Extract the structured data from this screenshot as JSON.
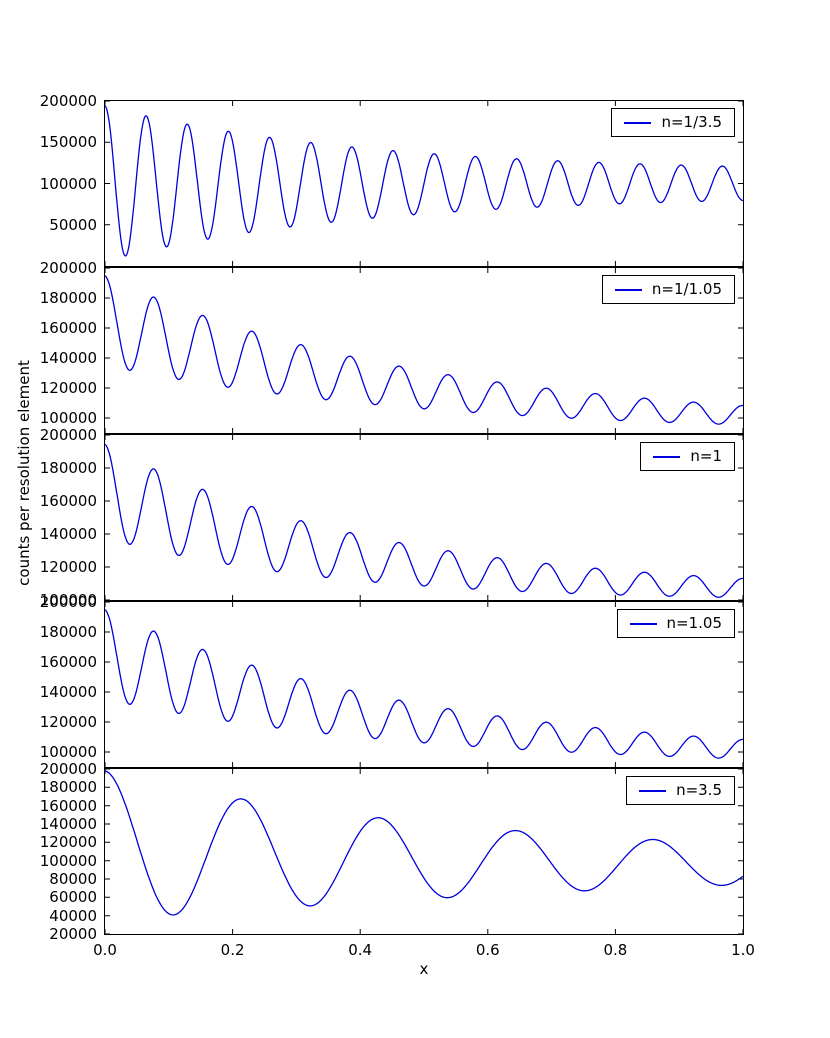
{
  "figure": {
    "background": "#ffffff",
    "axis_color": "#000000",
    "line_color": "#0000dd"
  },
  "chart_data": {
    "type": "line",
    "title": "",
    "xlabel": "x",
    "ylabel": "counts per resolution element",
    "x_range": [
      0.0,
      1.0
    ],
    "x_ticks": [
      0.0,
      0.2,
      0.4,
      0.6,
      0.8,
      1.0
    ],
    "grid": false,
    "legend_position": "upper right",
    "series_color": "#0000dd",
    "panels": [
      {
        "legend": "n=1/3.5",
        "ylim": [
          0,
          200000
        ],
        "yticks": [
          50000,
          100000,
          150000,
          200000
        ],
        "y_at_x0": 195000,
        "summary": "fast fringes, ~15.5 cycles over x=0..1, oscillating about constant mean ~100000; envelope decays from about +/-95000 at x=0 to +/-20000 at x=1",
        "model": {
          "base_end": 100000,
          "base_amp": 0,
          "base_decay": 0,
          "amp0": 80000,
          "amp_decay": 2.5,
          "amp_floor": 14000,
          "freq": 15.5,
          "phase": 0
        }
      },
      {
        "legend": "n=1/1.05",
        "ylim": [
          90000,
          200000
        ],
        "yticks": [
          100000,
          120000,
          140000,
          160000,
          180000,
          200000
        ],
        "y_at_x0": 193000,
        "summary": "~13 cycles; mean decays from ~165000 to ~98000; fringe amplitude decays from ~30000 to ~6000",
        "model": {
          "base_end": 92000,
          "base_amp": 73000,
          "base_decay": 2.0,
          "amp0": 27000,
          "amp_decay": 2.0,
          "amp_floor": 2800,
          "freq": 13,
          "phase": 0
        }
      },
      {
        "legend": "n=1",
        "ylim": [
          100000,
          200000
        ],
        "yticks": [
          100000,
          120000,
          140000,
          160000,
          180000,
          200000
        ],
        "y_at_x0": 193000,
        "summary": "~13 cycles; mean decays from ~166000 to ~107000; fringe amplitude decays from ~29000 to ~6000",
        "model": {
          "base_end": 102000,
          "base_amp": 64000,
          "base_decay": 2.5,
          "amp0": 26000,
          "amp_decay": 2.0,
          "amp_floor": 2300,
          "freq": 13,
          "phase": 0
        }
      },
      {
        "legend": "n=1.05",
        "ylim": [
          90000,
          200000
        ],
        "yticks": [
          100000,
          120000,
          140000,
          160000,
          180000,
          200000
        ],
        "y_at_x0": 193000,
        "summary": "~13 cycles; mean decays from ~165000 to ~97000; fringe amplitude decays from ~30000 to ~6000",
        "model": {
          "base_end": 92000,
          "base_amp": 73000,
          "base_decay": 2.0,
          "amp0": 27000,
          "amp_decay": 2.0,
          "amp_floor": 2800,
          "freq": 13,
          "phase": 0
        }
      },
      {
        "legend": "n=3.5",
        "ylim": [
          20000,
          200000
        ],
        "yticks": [
          20000,
          40000,
          60000,
          80000,
          100000,
          120000,
          140000,
          160000,
          180000,
          200000
        ],
        "y_at_x0": 195000,
        "summary": "slow fringes, ~4.6 cycles; peaks near x=0, 0.23, 0.46, 0.64, 0.86 with heights ~195000, 172000, 135000, 122000, 113000; dips ~40000 (x=0.1), ~30000 (x=0.32), ~50000 (x=0.55), ~78000 (x=0.77); ends near 92000",
        "model": {
          "base_end": 95000,
          "base_amp": 22000,
          "base_decay": 3.0,
          "amp0": 78000,
          "amp_decay": 1.4,
          "amp_floor": 3000,
          "freq": 4.65,
          "phase": 0
        }
      }
    ]
  }
}
